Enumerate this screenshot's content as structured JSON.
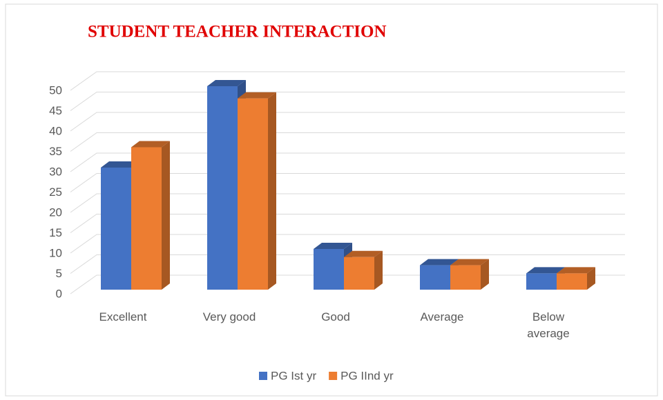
{
  "chart_data": {
    "type": "bar3d",
    "title": "STUDENT TEACHER INTERACTION",
    "categories": [
      "Excellent",
      "Very good",
      "Good",
      "Average",
      "Below average"
    ],
    "series": [
      {
        "name": "PG Ist yr",
        "color": "#4472c4",
        "values": [
          30,
          50,
          10,
          6,
          4
        ]
      },
      {
        "name": "PG IInd yr",
        "color": "#ed7d31",
        "values": [
          35,
          47,
          8,
          6,
          4
        ]
      }
    ],
    "ylim": [
      0,
      50
    ],
    "yticks": [
      0,
      5,
      10,
      15,
      20,
      25,
      30,
      35,
      40,
      45,
      50
    ],
    "grid": true,
    "legend": "bottom"
  }
}
